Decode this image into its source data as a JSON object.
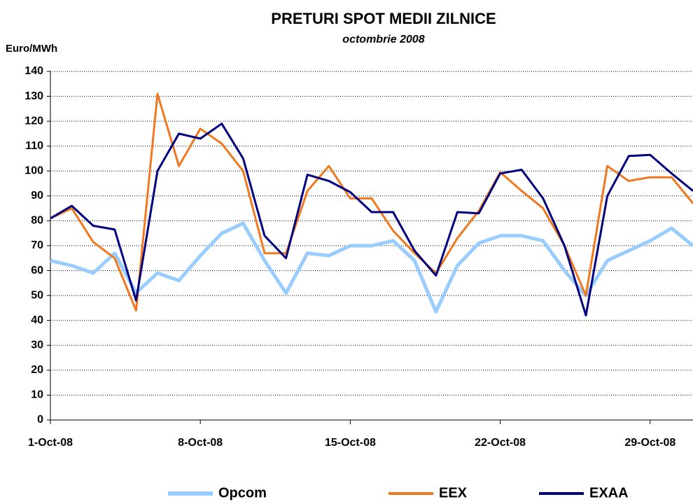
{
  "chart_data": {
    "type": "line",
    "title": "PRETURI SPOT MEDII ZILNICE",
    "subtitle": "octombrie 2008",
    "y_label": "Euro/MWh",
    "categories": [
      "1-Oct-08",
      null,
      null,
      null,
      null,
      null,
      null,
      "8-Oct-08",
      null,
      null,
      null,
      null,
      null,
      null,
      "15-Oct-08",
      null,
      null,
      null,
      null,
      null,
      null,
      "22-Oct-08",
      null,
      null,
      null,
      null,
      null,
      null,
      "29-Oct-08",
      null,
      null
    ],
    "series": [
      {
        "name": "Opcom",
        "color": "#99ccff",
        "width": 5,
        "values": [
          64,
          62,
          59,
          67,
          51,
          59,
          56,
          66,
          75,
          79,
          64,
          51,
          67,
          66,
          70,
          70,
          72,
          64,
          43.5,
          62,
          71,
          74,
          74,
          72,
          60,
          50,
          64,
          68,
          72,
          77,
          70
        ]
      },
      {
        "name": "EEX",
        "color": "#f07820",
        "width": 3,
        "values": [
          81,
          85,
          71.5,
          65,
          44,
          131,
          102,
          117,
          111,
          100,
          67,
          67,
          92,
          102,
          89,
          89,
          76,
          67,
          59,
          73,
          84,
          99.5,
          92,
          85,
          70,
          50,
          102,
          96,
          97.5,
          97.5,
          87
        ]
      },
      {
        "name": "EXAA",
        "color": "#000080",
        "width": 3,
        "values": [
          81,
          86,
          78,
          76.5,
          48,
          100,
          115,
          113,
          119,
          105,
          74,
          65,
          98.5,
          96,
          91.5,
          83.5,
          83.5,
          68,
          58,
          83.5,
          83,
          99,
          100.5,
          89,
          70,
          42,
          90,
          106,
          106.5,
          99,
          92
        ]
      }
    ],
    "ylim": [
      0,
      140
    ],
    "yticks": [
      0,
      10,
      20,
      30,
      40,
      50,
      60,
      70,
      80,
      90,
      100,
      110,
      120,
      130,
      140
    ],
    "grid": true,
    "legend": "bottom"
  }
}
